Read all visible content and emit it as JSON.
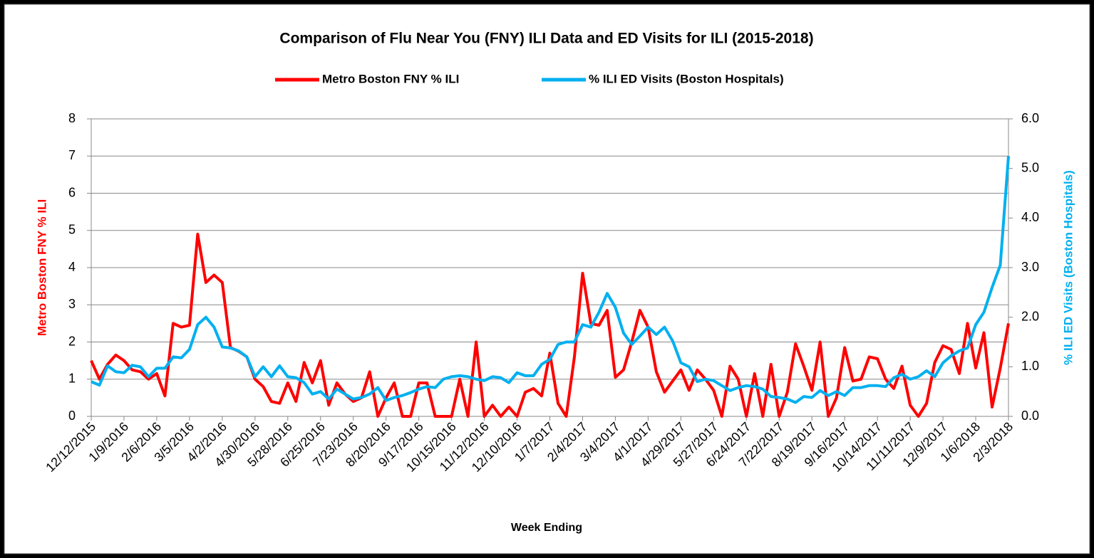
{
  "chart_data": {
    "type": "line",
    "title": "Comparison of Flu Near You (FNY) ILI Data and ED Visits for ILI (2015-2018)",
    "xlabel": "Week Ending",
    "ylabel": "Metro Boston FNY % ILI",
    "y2label": "% ILI ED Visits (Boston Hospitals)",
    "categories": [
      "12/12/2015",
      null,
      null,
      null,
      "1/9/2016",
      null,
      null,
      null,
      "2/6/2016",
      null,
      null,
      null,
      "3/5/2016",
      null,
      null,
      null,
      "4/2/2016",
      null,
      null,
      null,
      "4/30/2016",
      null,
      null,
      null,
      "5/28/2016",
      null,
      null,
      null,
      "6/25/2016",
      null,
      null,
      null,
      "7/23/2016",
      null,
      null,
      null,
      "8/20/2016",
      null,
      null,
      null,
      "9/17/2016",
      null,
      null,
      null,
      "10/15/2016",
      null,
      null,
      null,
      "11/12/2016",
      null,
      null,
      null,
      "12/10/2016",
      null,
      null,
      null,
      "1/7/2017",
      null,
      null,
      null,
      "2/4/2017",
      null,
      null,
      null,
      "3/4/2017",
      null,
      null,
      null,
      "4/1/2017",
      null,
      null,
      null,
      "4/29/2017",
      null,
      null,
      null,
      "5/27/2017",
      null,
      null,
      null,
      "6/24/2017",
      null,
      null,
      null,
      "7/22/2017",
      null,
      null,
      null,
      "8/19/2017",
      null,
      null,
      null,
      "9/16/2017",
      null,
      null,
      null,
      "10/14/2017",
      null,
      null,
      null,
      "11/11/2017",
      null,
      null,
      null,
      "12/9/2017",
      null,
      null,
      null,
      "1/6/2018",
      null,
      null,
      null,
      "2/3/2018"
    ],
    "series": [
      {
        "name": "Metro Boston FNY % ILI",
        "color": "#ff0000",
        "axis": "y",
        "values": [
          1.5,
          1.0,
          1.4,
          1.65,
          1.5,
          1.25,
          1.2,
          1.0,
          1.15,
          0.55,
          2.5,
          2.4,
          2.45,
          4.9,
          3.6,
          3.8,
          3.6,
          1.85,
          1.75,
          1.6,
          1.0,
          0.8,
          0.4,
          0.35,
          0.9,
          0.4,
          1.45,
          0.9,
          1.5,
          0.3,
          0.9,
          0.6,
          0.4,
          0.5,
          1.2,
          0.0,
          0.5,
          0.9,
          0.0,
          0.0,
          0.9,
          0.9,
          0.0,
          0.0,
          0.0,
          1.0,
          0.0,
          2.0,
          0.0,
          0.3,
          0.0,
          0.25,
          0.0,
          0.65,
          0.75,
          0.55,
          1.7,
          0.35,
          0.0,
          1.6,
          3.85,
          2.5,
          2.45,
          2.85,
          1.05,
          1.25,
          2.0,
          2.85,
          2.4,
          1.2,
          0.65,
          0.95,
          1.25,
          0.7,
          1.25,
          1.0,
          0.7,
          0.0,
          1.35,
          1.0,
          0.0,
          1.15,
          0.0,
          1.4,
          0.0,
          0.65,
          1.95,
          1.35,
          0.7,
          2.0,
          0.0,
          0.5,
          1.85,
          0.95,
          1.0,
          1.6,
          1.55,
          1.0,
          0.75,
          1.35,
          0.3,
          0.0,
          0.35,
          1.45,
          1.9,
          1.8,
          1.15,
          2.5,
          1.3,
          2.25,
          0.25,
          1.3,
          2.5
        ]
      },
      {
        "name": "% ILI ED Visits (Boston Hospitals)",
        "color": "#00b0f0",
        "axis": "y2",
        "values": [
          0.7,
          0.63,
          1.02,
          0.9,
          0.88,
          1.03,
          1.0,
          0.8,
          0.97,
          0.97,
          1.2,
          1.18,
          1.35,
          1.85,
          2.0,
          1.8,
          1.4,
          1.38,
          1.32,
          1.2,
          0.8,
          1.0,
          0.8,
          1.02,
          0.8,
          0.78,
          0.68,
          0.45,
          0.5,
          0.35,
          0.55,
          0.45,
          0.35,
          0.38,
          0.45,
          0.58,
          0.32,
          0.38,
          0.42,
          0.48,
          0.55,
          0.6,
          0.58,
          0.75,
          0.8,
          0.82,
          0.8,
          0.75,
          0.72,
          0.8,
          0.78,
          0.68,
          0.88,
          0.82,
          0.82,
          1.05,
          1.15,
          1.45,
          1.5,
          1.5,
          1.85,
          1.8,
          2.1,
          2.48,
          2.2,
          1.68,
          1.45,
          1.62,
          1.8,
          1.65,
          1.8,
          1.52,
          1.08,
          1.0,
          0.7,
          0.75,
          0.72,
          0.62,
          0.52,
          0.58,
          0.62,
          0.6,
          0.55,
          0.4,
          0.38,
          0.35,
          0.28,
          0.4,
          0.38,
          0.52,
          0.42,
          0.5,
          0.42,
          0.58,
          0.58,
          0.62,
          0.62,
          0.6,
          0.78,
          0.85,
          0.75,
          0.8,
          0.92,
          0.8,
          1.08,
          1.22,
          1.32,
          1.38,
          1.85,
          2.1,
          2.6,
          3.05,
          5.25
        ]
      }
    ],
    "ylim": [
      0,
      8
    ],
    "yticks": [
      0,
      1,
      2,
      3,
      4,
      5,
      6,
      7,
      8
    ],
    "y2lim": [
      0,
      6
    ],
    "y2ticks": [
      {
        "value": 0,
        "label": "0.0"
      },
      {
        "value": 1,
        "label": "1.0"
      },
      {
        "value": 2,
        "label": "2.0"
      },
      {
        "value": 3,
        "label": "3.0"
      },
      {
        "value": 4,
        "label": "4.0"
      },
      {
        "value": 5,
        "label": "5.0"
      },
      {
        "value": 6,
        "label": "6.0"
      }
    ],
    "grid": true,
    "legend": "top"
  }
}
